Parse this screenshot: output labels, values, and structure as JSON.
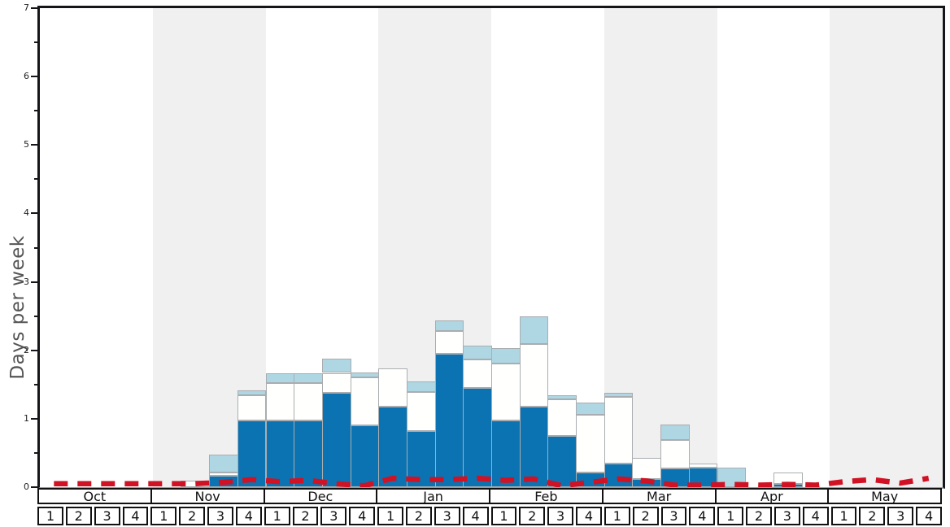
{
  "colors": {
    "background": "#ffffff",
    "band_shaded": "#f0f0f0",
    "bar_border": "#a9adb0",
    "frame": "#16161a",
    "baseline": "#9a9a9a",
    "ylabel_text": "#555555",
    "tick_text": "#222222",
    "cell_border": "#111111",
    "dark_blue": "#0b73b2",
    "white_segment": "#fffffe",
    "light_blue": "#aed6e3",
    "red_line": "#d11124"
  },
  "chart_data": {
    "type": "bar",
    "subtype": "stacked-weekly",
    "title": "",
    "xlabel": "",
    "ylabel": "Days per week",
    "ylim": [
      0,
      7
    ],
    "ytick_step": 1,
    "yminor_step": 0.5,
    "grid": false,
    "legend_position": "none",
    "months": [
      "Oct",
      "Nov",
      "Dec",
      "Jan",
      "Feb",
      "Mar",
      "Apr",
      "May"
    ],
    "shaded_months": [
      "Nov",
      "Jan",
      "Mar",
      "May"
    ],
    "week_labels": [
      "1",
      "2",
      "3",
      "4"
    ],
    "weeks_per_month": 4,
    "series": [
      {
        "name": "dark-blue-bottom-segment",
        "color": "#0b73b2",
        "values": [
          0,
          0,
          0,
          0,
          0,
          0,
          0.17,
          0.97,
          0.97,
          0.97,
          1.38,
          0.9,
          1.18,
          0.82,
          1.95,
          1.45,
          0.97,
          1.18,
          0.75,
          0.21,
          0.35,
          0.12,
          0.27,
          0.28,
          0,
          0,
          0.05,
          0,
          0,
          0,
          0,
          0
        ]
      },
      {
        "name": "white-middle-segment",
        "color": "#fffffe",
        "values": [
          0,
          0,
          0,
          0,
          0,
          0.1,
          0.05,
          0.37,
          0.55,
          0.55,
          0.29,
          0.7,
          0.55,
          0.57,
          0.33,
          0.42,
          0.84,
          0.91,
          0.53,
          0.85,
          0.97,
          0.31,
          0.42,
          0.06,
          0,
          0,
          0.17,
          0,
          0,
          0,
          0,
          0
        ]
      },
      {
        "name": "light-blue-top-segment",
        "color": "#aed6e3",
        "values": [
          0,
          0,
          0,
          0,
          0,
          0,
          0.25,
          0.07,
          0.15,
          0.15,
          0.21,
          0.08,
          0,
          0.15,
          0.16,
          0.2,
          0.22,
          0.41,
          0.06,
          0.18,
          0.06,
          0,
          0.22,
          0,
          0.28,
          0,
          0,
          0,
          0,
          0,
          0,
          0
        ]
      }
    ],
    "line": {
      "name": "red-dashed-line",
      "color": "#d11124",
      "style": "dashed",
      "values": [
        0.05,
        0.05,
        0.05,
        0.05,
        0.05,
        0.05,
        0.07,
        0.11,
        0.08,
        0.1,
        0.05,
        0.02,
        0.13,
        0.11,
        0.11,
        0.13,
        0.1,
        0.12,
        0.02,
        0.07,
        0.12,
        0.09,
        0.03,
        0.03,
        0.04,
        0.03,
        0.04,
        0.03,
        0.08,
        0.11,
        0.06,
        0.13
      ]
    }
  }
}
